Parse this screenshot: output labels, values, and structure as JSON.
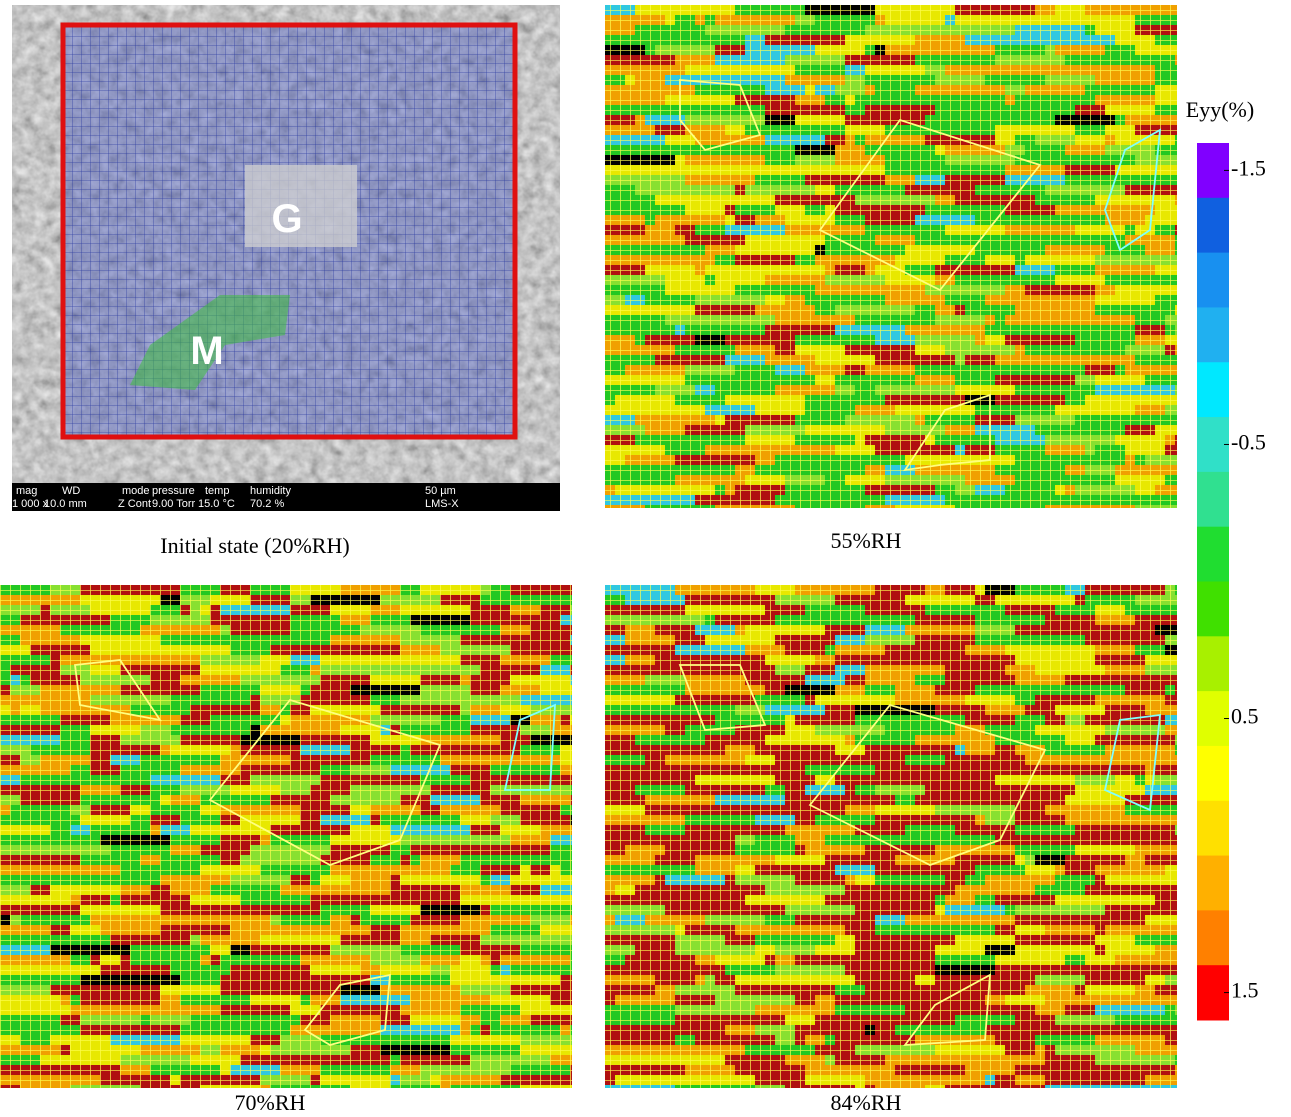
{
  "sem": {
    "labels": {
      "g": "G",
      "m": "M"
    },
    "info": {
      "headers": [
        "mag",
        "WD",
        "mode",
        "pressure",
        "temp",
        "humidity",
        "50 µm"
      ],
      "values": [
        "1 000 x",
        "10.0 mm",
        "Z Cont",
        "9.00 Torr",
        "15.0 °C",
        "70.2 %",
        "LMS-X"
      ]
    }
  },
  "captions": [
    "Initial state (20%RH)",
    "55%RH",
    "70%RH",
    "84%RH"
  ],
  "colorbar": {
    "title": "Eyy(%)",
    "lim": [
      -1.6,
      1.6
    ],
    "ticks": [
      -1.5,
      -0.5,
      0.5,
      1.5
    ],
    "colors": [
      "#8000ff",
      "#1060e0",
      "#1890f0",
      "#20b0f0",
      "#00e8ff",
      "#30e0c8",
      "#30e090",
      "#20dd30",
      "#40e000",
      "#a8f000",
      "#e0ff00",
      "#ffff00",
      "#ffe000",
      "#ffb000",
      "#ff8000",
      "#ff0000"
    ]
  }
}
